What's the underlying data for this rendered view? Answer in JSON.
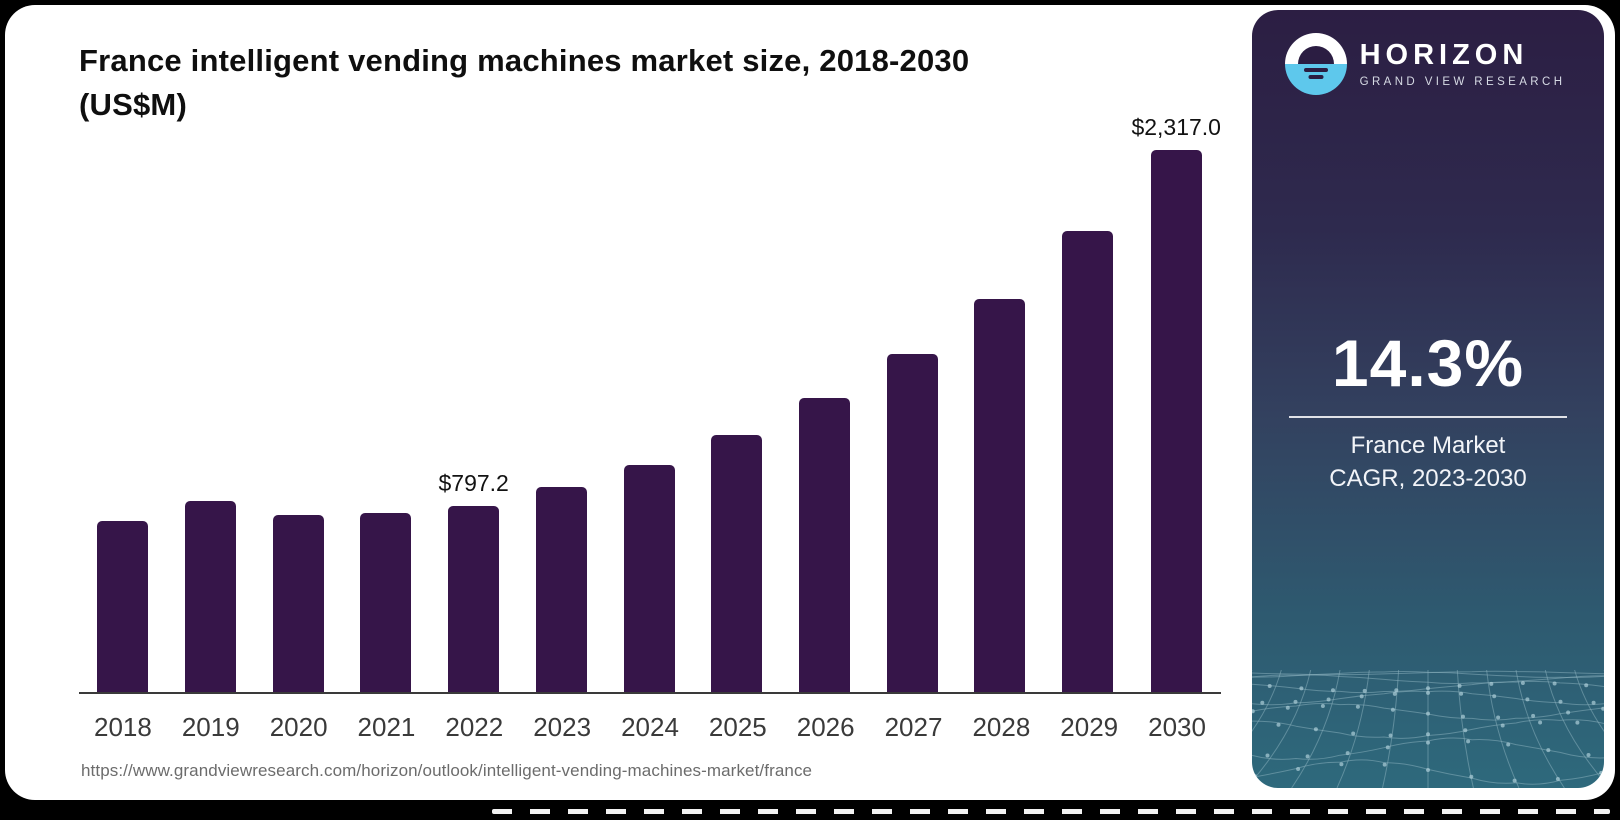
{
  "chart": {
    "title_line1": "France intelligent vending machines market size, 2018-2030",
    "title_line2": "(US$M)",
    "source_url": "https://www.grandviewresearch.com/horizon/outlook/intelligent-vending-machines-market/france"
  },
  "chart_data": {
    "type": "bar",
    "title": "France intelligent vending machines market size, 2018-2030 (US$M)",
    "unit": "US$M",
    "categories": [
      "2018",
      "2019",
      "2020",
      "2021",
      "2022",
      "2023",
      "2024",
      "2025",
      "2026",
      "2027",
      "2028",
      "2029",
      "2030"
    ],
    "values": [
      731.9,
      816.5,
      757.1,
      766.0,
      797.2,
      876.3,
      972.4,
      1097.8,
      1255.0,
      1443.2,
      1680.9,
      1970.8,
      2317.0
    ],
    "data_labels": {
      "2022": "$797.2",
      "2030": "$2,317.0"
    },
    "ylim": [
      0,
      2480
    ],
    "grid": false,
    "legend": "none",
    "bar_color": "#361549",
    "axis_color": "#3a3a3a"
  },
  "sidebar": {
    "logo": {
      "brand": "HORIZON",
      "tagline": "GRAND VIEW RESEARCH"
    },
    "stat_value": "14.3%",
    "stat_label_line1": "France Market",
    "stat_label_line2": "CAGR, 2023-2030",
    "colors": {
      "accent_blue": "#5ec8ec",
      "gradient_top": "#2c1e43",
      "gradient_bottom": "#2e697c",
      "mesh_line": "#8fb6c2"
    }
  }
}
